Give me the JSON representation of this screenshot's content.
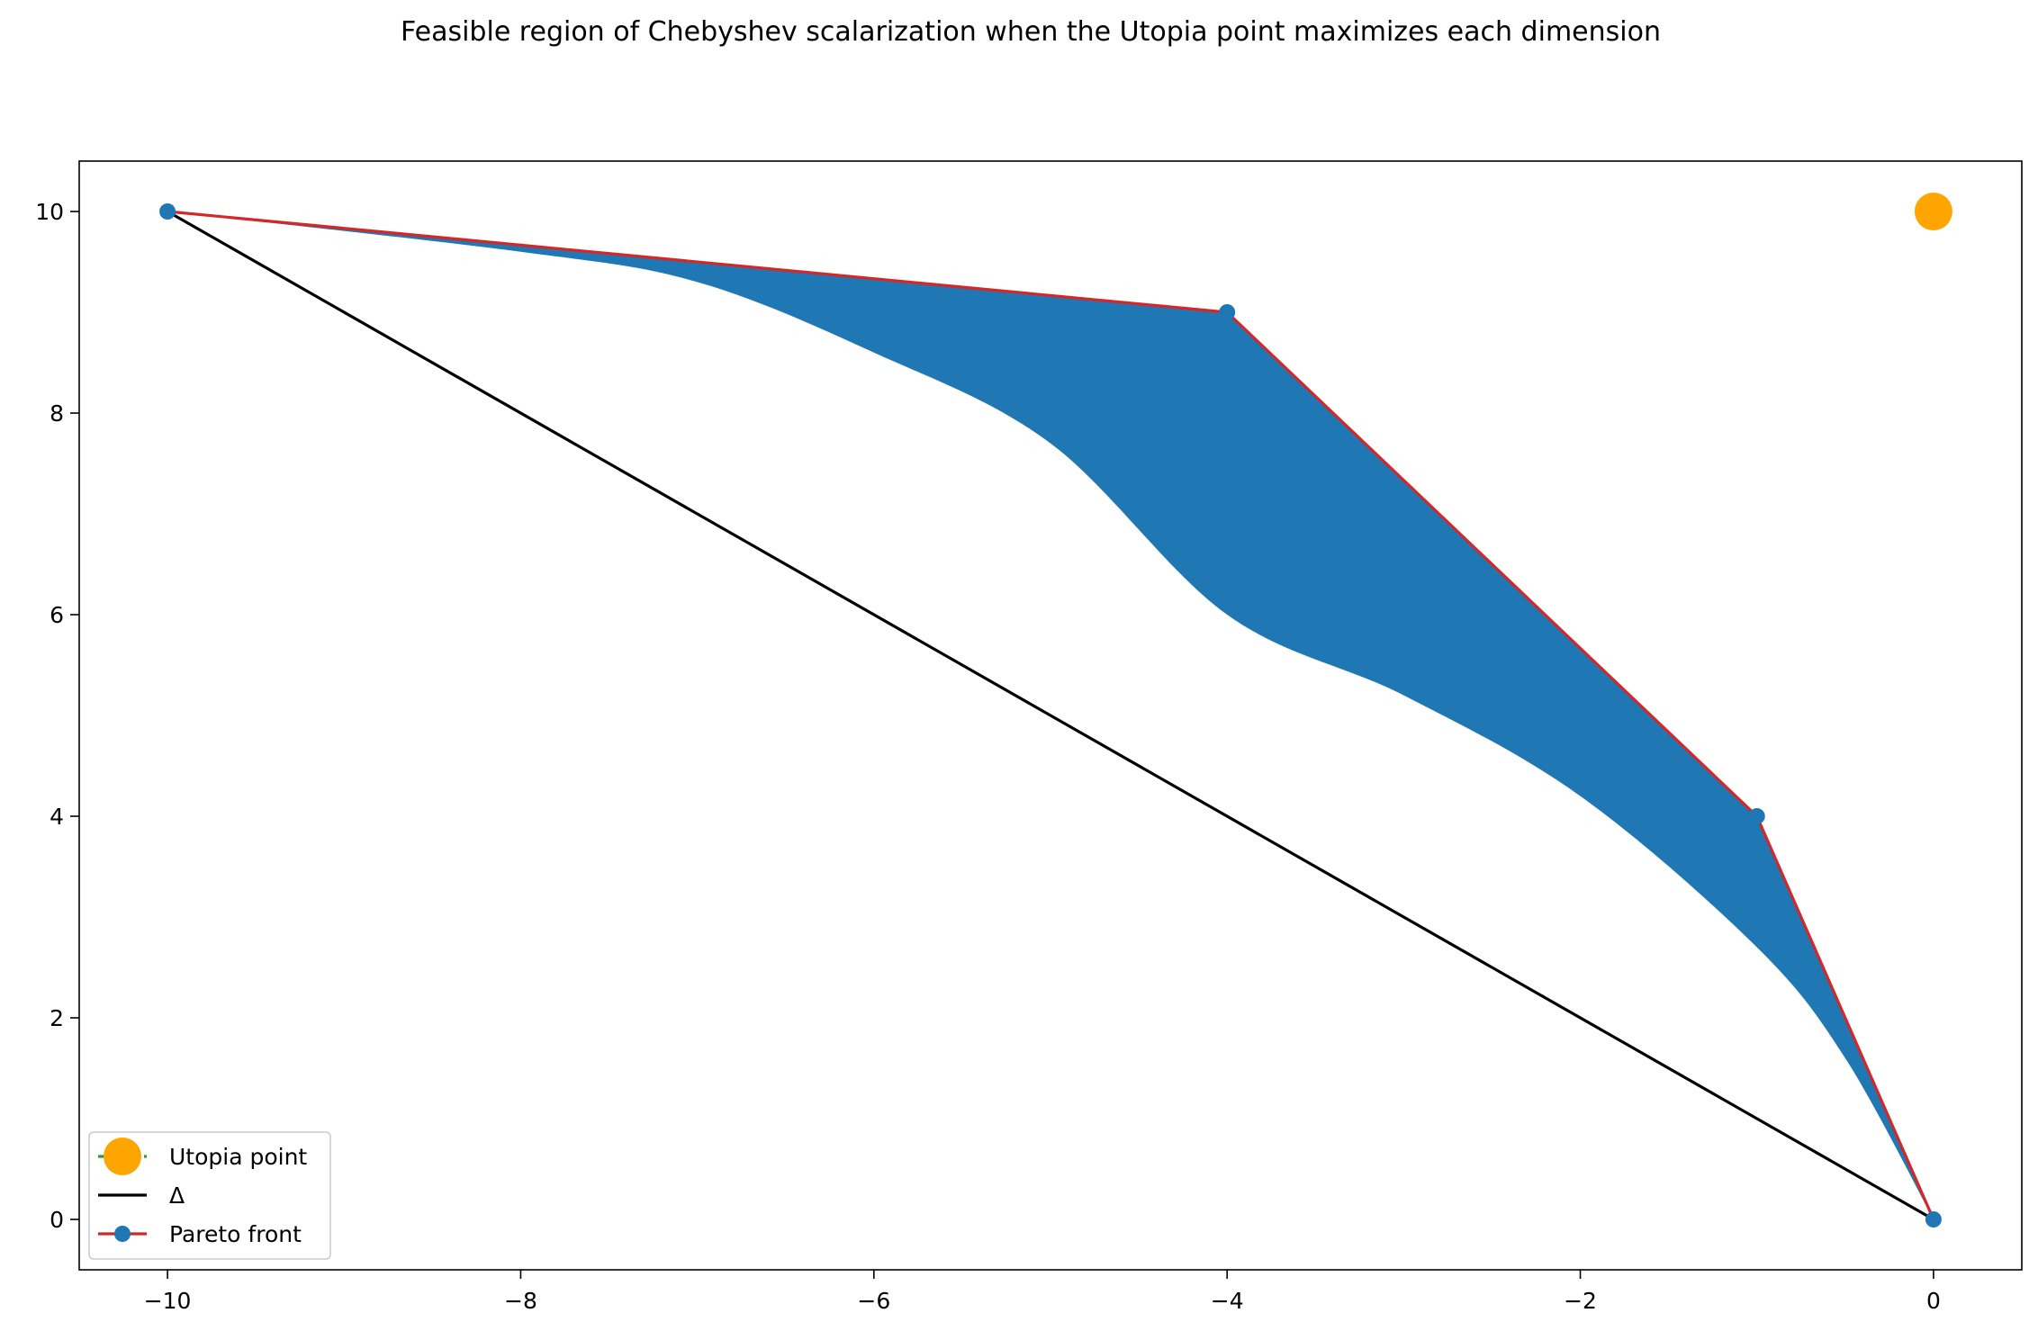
{
  "chart_data": {
    "type": "line",
    "title": "Feasible region of Chebyshev scalarization when the Utopia point maximizes each dimension",
    "xlabel": "",
    "ylabel": "",
    "xlim": [
      -10.5,
      0.5
    ],
    "ylim": [
      -0.5,
      10.5
    ],
    "xticks": [
      -10,
      -8,
      -6,
      -4,
      -2,
      0
    ],
    "yticks": [
      0,
      2,
      4,
      6,
      8,
      10
    ],
    "xtick_labels": [
      "−10",
      "−8",
      "−6",
      "−4",
      "−2",
      "0"
    ],
    "ytick_labels": [
      "0",
      "2",
      "4",
      "6",
      "8",
      "10"
    ],
    "grid": false,
    "legend_position": "lower-left",
    "feasible_region": {
      "color": "#1f77b4",
      "upper_boundary": [
        [
          -10,
          10
        ],
        [
          -4,
          9
        ],
        [
          -1,
          4
        ],
        [
          0,
          0
        ]
      ],
      "lower_boundary": [
        [
          -10,
          10
        ],
        [
          -8,
          9.6
        ],
        [
          -7,
          9.3
        ],
        [
          -6,
          8.6
        ],
        [
          -5,
          7.7
        ],
        [
          -4,
          6.0
        ],
        [
          -3,
          5.2
        ],
        [
          -2,
          4.2
        ],
        [
          -1,
          2.7
        ],
        [
          -0.5,
          1.6
        ],
        [
          0,
          0
        ]
      ]
    },
    "series": [
      {
        "name": "Utopia point",
        "kind": "point",
        "x": [
          0
        ],
        "y": [
          10
        ],
        "color": "#ffa500",
        "line_color": "#2ca02c"
      },
      {
        "name": "Δ",
        "kind": "line",
        "x": [
          -10,
          0
        ],
        "y": [
          10,
          0
        ],
        "color": "#000000"
      },
      {
        "name": "Pareto front",
        "kind": "line-markers",
        "x": [
          -10,
          -4,
          -1,
          0
        ],
        "y": [
          10,
          9,
          4,
          0
        ],
        "color": "#d62728",
        "marker_color": "#1f77b4"
      }
    ]
  }
}
